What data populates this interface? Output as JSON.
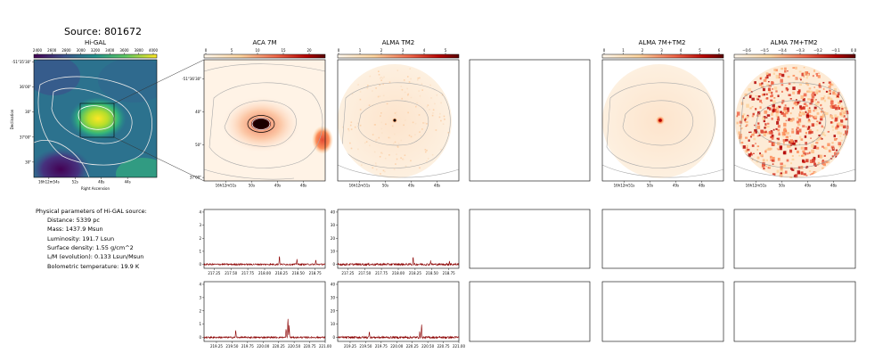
{
  "header": {
    "source_label": "Source: 801672"
  },
  "panels": {
    "higal": {
      "title": "Hi-GAL",
      "colorbar_ticks": [
        "2400",
        "2600",
        "2800",
        "3000",
        "3200",
        "3400",
        "3600",
        "3800",
        "4000"
      ],
      "y_ticks": [
        "-51°35'30\"",
        "36'00\"",
        "30\"",
        "37'00\"",
        "30\""
      ],
      "x_ticks": [
        "16h12m54s",
        "52s",
        "48s",
        "44s"
      ],
      "xlabel": "Right Ascension",
      "ylabel": "Declination"
    },
    "aca": {
      "title": "ACA 7M",
      "colorbar_ticks": [
        "0",
        "5",
        "10",
        "15",
        "20"
      ],
      "y_ticks": [
        "-51°36'30\"",
        "40\"",
        "50\"",
        "37'00\""
      ],
      "x_ticks": [
        "16h12m51s",
        "50s",
        "49s",
        "48s"
      ]
    },
    "tm2": {
      "title": "ALMA TM2",
      "colorbar_ticks": [
        "0",
        "1",
        "2",
        "3",
        "4",
        "5"
      ],
      "x_ticks": [
        "16h12m51s",
        "50s",
        "49s",
        "48s"
      ]
    },
    "combo": {
      "title": "ALMA 7M+TM2",
      "colorbar_ticks": [
        "0",
        "1",
        "2",
        "3",
        "4",
        "5",
        "6"
      ],
      "x_ticks": [
        "16h12m51s",
        "50s",
        "49s",
        "48s"
      ]
    },
    "combo_tm2": {
      "title": "ALMA 7M+TM2",
      "colorbar_ticks": [
        "−0.6",
        "−0.5",
        "−0.4",
        "−0.3",
        "−0.2",
        "−0.1",
        "0.0"
      ],
      "x_ticks": [
        "16h12m51s",
        "50s",
        "49s",
        "48s"
      ]
    }
  },
  "parameters": {
    "heading": "Physical parameters of Hi-GAL source:",
    "distance": "Distance: 5339 pc",
    "mass": "Mass: 1437.9 Msun",
    "luminosity": "Luminosity: 191.7 Lsun",
    "surface_density": "Surface density: 1.55 g/cm^2",
    "lm": "L/M (evolution): 0.133 Lsun/Msun",
    "temperature": "Bolometric temperature: 19.9 K"
  },
  "chart_data": [
    {
      "type": "line",
      "panel": "ACA 7M spectrum, row 1",
      "x_ticks": [
        "217.25",
        "217.50",
        "217.75",
        "218.00",
        "218.25",
        "218.50",
        "218.75"
      ],
      "y_ticks": [
        "0",
        "1",
        "2",
        "3",
        "4"
      ],
      "xlim": [
        217.1,
        218.9
      ],
      "ylim": [
        -0.3,
        4.2
      ],
      "lines": [
        [
          218.22,
          0.7
        ],
        [
          218.48,
          0.45
        ],
        [
          218.76,
          0.35
        ]
      ],
      "noise": 0.06
    },
    {
      "type": "line",
      "panel": "ALMA TM2 spectrum, row 1",
      "x_ticks": [
        "217.25",
        "217.50",
        "217.75",
        "218.00",
        "218.25",
        "218.50",
        "218.75"
      ],
      "y_ticks": [
        "0",
        "10",
        "20",
        "30",
        "40"
      ],
      "xlim": [
        217.1,
        218.9
      ],
      "ylim": [
        -3,
        42
      ],
      "lines": [
        [
          218.22,
          6
        ],
        [
          218.48,
          3
        ],
        [
          218.76,
          2.5
        ]
      ],
      "noise": 0.8
    },
    {
      "type": "line",
      "panel": "ACA 7M spectrum, row 2",
      "x_ticks": [
        "219.25",
        "219.50",
        "219.75",
        "220.00",
        "220.25",
        "220.50",
        "220.75",
        "221.00"
      ],
      "y_ticks": [
        "0",
        "1",
        "2",
        "3",
        "4"
      ],
      "xlim": [
        219.05,
        221.0
      ],
      "ylim": [
        -0.3,
        4.2
      ],
      "lines": [
        [
          219.56,
          0.55
        ],
        [
          220.4,
          1.5
        ],
        [
          220.37,
          0.65
        ],
        [
          220.42,
          0.9
        ]
      ],
      "noise": 0.06
    },
    {
      "type": "line",
      "panel": "ALMA TM2 spectrum, row 2",
      "x_ticks": [
        "219.25",
        "219.50",
        "219.75",
        "220.00",
        "220.25",
        "220.50",
        "220.75",
        "221.00"
      ],
      "y_ticks": [
        "0",
        "10",
        "20",
        "30",
        "40"
      ],
      "xlim": [
        219.05,
        221.0
      ],
      "ylim": [
        -3,
        42
      ],
      "lines": [
        [
          219.56,
          5
        ],
        [
          220.4,
          10
        ],
        [
          220.37,
          4
        ]
      ],
      "noise": 0.8
    }
  ],
  "colors": {
    "spectrum": "#8b0000",
    "axis": "#000000",
    "contour": "#a9a9a9"
  }
}
